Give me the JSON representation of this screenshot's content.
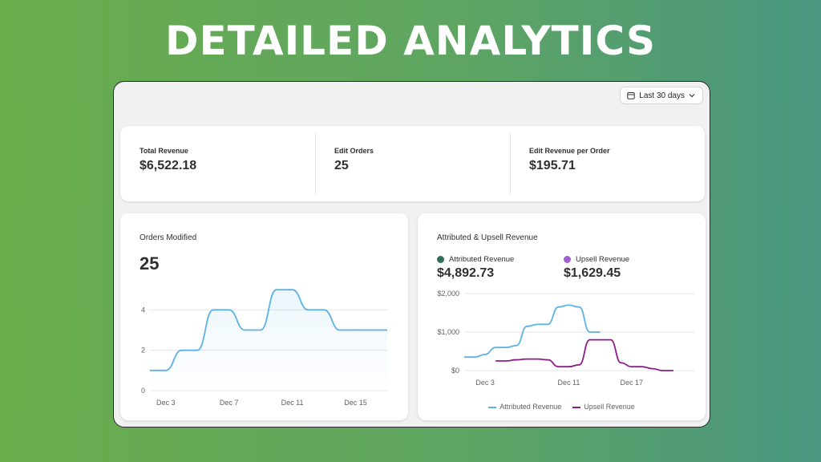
{
  "hero": {
    "title": "DETAILED ANALYTICS"
  },
  "toolbar": {
    "date_range": "Last 30 days",
    "calendar_icon": "calendar-icon",
    "chevron_icon": "chevron-down-icon"
  },
  "stats": [
    {
      "label": "Total Revenue",
      "value": "$6,522.18"
    },
    {
      "label": "Edit Orders",
      "value": "25"
    },
    {
      "label": "Edit Revenue per Order",
      "value": "$195.71"
    }
  ],
  "colors": {
    "attributed": "#5bb2e3",
    "upsell": "#8c1b8c",
    "attributed_dot": "#2f6f5a",
    "upsell_dot": "#a061cf"
  },
  "chart_data": [
    {
      "type": "line",
      "title": "Orders Modified",
      "headline": "25",
      "x": [
        "Dec 2",
        "Dec 3",
        "Dec 4",
        "Dec 5",
        "Dec 6",
        "Dec 7",
        "Dec 8",
        "Dec 9",
        "Dec 10",
        "Dec 11",
        "Dec 12",
        "Dec 13",
        "Dec 14",
        "Dec 15",
        "Dec 16",
        "Dec 17"
      ],
      "series": [
        {
          "values": [
            1,
            1,
            2,
            2,
            4,
            4,
            3,
            3,
            5,
            5,
            4,
            4,
            3,
            3,
            3,
            3
          ]
        }
      ],
      "xticks": [
        "Dec 3",
        "Dec 7",
        "Dec 11",
        "Dec 15"
      ],
      "yticks": [
        "0",
        "2",
        "4"
      ],
      "ylim": [
        0,
        6
      ],
      "grid": true,
      "legend": "none"
    },
    {
      "type": "line",
      "title": "Attributed & Upsell Revenue",
      "x": [
        "Dec 1",
        "Dec 2",
        "Dec 3",
        "Dec 4",
        "Dec 5",
        "Dec 6",
        "Dec 7",
        "Dec 8",
        "Dec 9",
        "Dec 10",
        "Dec 11",
        "Dec 12",
        "Dec 13",
        "Dec 14",
        "Dec 15",
        "Dec 16",
        "Dec 17",
        "Dec 18",
        "Dec 19",
        "Dec 20",
        "Dec 21",
        "Dec 22",
        "Dec 23"
      ],
      "series": [
        {
          "name": "Attributed Revenue",
          "total": "$4,892.73",
          "values": [
            350,
            350,
            420,
            600,
            600,
            650,
            1150,
            1200,
            1200,
            1650,
            1700,
            1650,
            1000,
            1000,
            null,
            null,
            null,
            null,
            null,
            null,
            null,
            null,
            null
          ]
        },
        {
          "name": "Upsell Revenue",
          "total": "$1,629.45",
          "values": [
            null,
            null,
            null,
            250,
            250,
            280,
            300,
            300,
            280,
            100,
            100,
            150,
            800,
            800,
            800,
            200,
            100,
            100,
            50,
            0,
            0,
            null,
            null
          ]
        }
      ],
      "xticks": [
        "Dec 3",
        "Dec 11",
        "Dec 17"
      ],
      "yticks": [
        "$0",
        "$1,000",
        "$2,000"
      ],
      "ylim": [
        0,
        2000
      ],
      "grid": true,
      "legend": "bottom"
    }
  ]
}
